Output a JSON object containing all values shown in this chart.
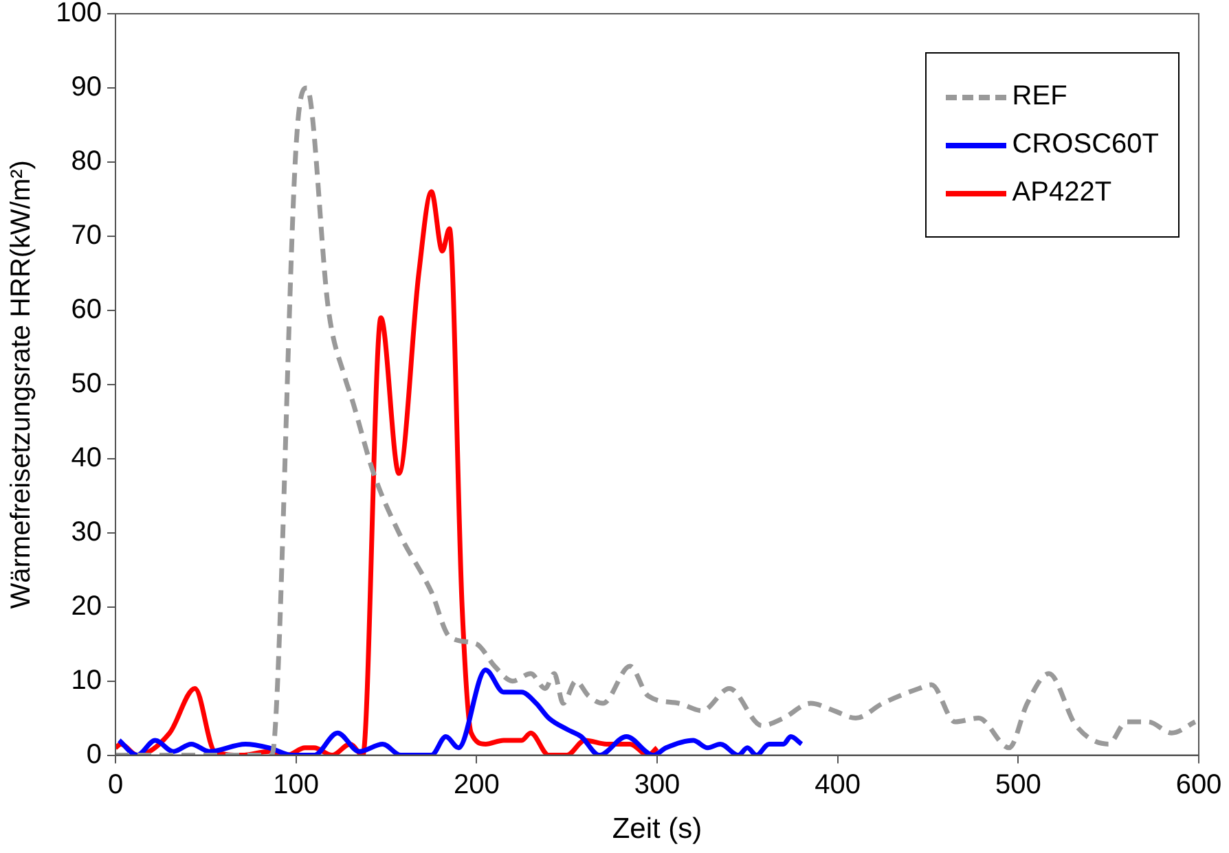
{
  "chart_data": {
    "type": "line",
    "xlabel": "Zeit (s)",
    "ylabel": "Wärmefreisetzungsrate HRR(kW/m²)",
    "xlim": [
      0,
      600
    ],
    "xticks": [
      0,
      100,
      200,
      300,
      400,
      500,
      600
    ],
    "ylim": [
      0,
      100
    ],
    "yticks": [
      0,
      10,
      20,
      30,
      40,
      50,
      60,
      70,
      80,
      90,
      100
    ],
    "grid": false,
    "legend": "top right",
    "marker": "none",
    "series": [
      {
        "name": "REF",
        "color": "#999999",
        "line_style": "dashed",
        "x": [
          0,
          86,
          88,
          100,
          106,
          118,
          127,
          131,
          143,
          157,
          175,
          185,
          200,
          210,
          220,
          230,
          238,
          243,
          248,
          255,
          262,
          270,
          285,
          295,
          312,
          325,
          340,
          358,
          370,
          385,
          398,
          410,
          425,
          445,
          452,
          465,
          478,
          495,
          505,
          517,
          532,
          550,
          560,
          572,
          585,
          598
        ],
        "values": [
          0,
          0,
          2,
          82,
          90,
          60,
          51,
          48,
          38,
          30,
          22,
          16,
          15,
          12,
          10,
          11,
          9,
          11,
          7,
          10,
          8,
          7,
          12,
          8,
          7,
          6,
          9,
          4,
          5,
          7,
          6,
          5,
          7,
          9,
          9.5,
          4.5,
          5,
          1,
          7,
          11,
          4,
          1.5,
          4.5,
          4.5,
          3,
          4.5
        ]
      },
      {
        "name": "CROSC60T",
        "color": "#0000ff",
        "line_style": "solid",
        "x": [
          2,
          12,
          22,
          32,
          42,
          52,
          72,
          85,
          98,
          110,
          123,
          135,
          148,
          158,
          175,
          183,
          190,
          205,
          215,
          225,
          233,
          240,
          250,
          258,
          268,
          283,
          298,
          305,
          320,
          328,
          335,
          345,
          350,
          355,
          362,
          370,
          374,
          380
        ],
        "values": [
          2,
          0,
          2,
          0.5,
          1.5,
          0.5,
          1.5,
          1,
          0,
          0,
          3,
          0.5,
          1.5,
          0,
          0,
          2.5,
          1,
          11.5,
          8.5,
          8.5,
          7,
          5,
          3.5,
          2.5,
          0,
          2.5,
          0,
          1,
          2,
          1,
          1.5,
          0,
          1,
          0,
          1.5,
          1.5,
          2.5,
          1.5
        ]
      },
      {
        "name": "AP422T",
        "color": "#ff0000",
        "line_style": "solid",
        "x": [
          0,
          3,
          12,
          30,
          44,
          55,
          70,
          85,
          95,
          105,
          110,
          120,
          130,
          137,
          147,
          157,
          168,
          175,
          181,
          185,
          192,
          197,
          205,
          215,
          225,
          230,
          240,
          250,
          260,
          272,
          285,
          295,
          300
        ],
        "values": [
          1,
          1.5,
          0,
          3,
          9,
          0.5,
          0,
          0.5,
          0,
          1,
          1,
          0,
          1.5,
          0,
          59,
          38,
          65,
          76,
          68,
          71,
          20,
          3,
          1.5,
          2,
          2,
          3,
          0,
          0,
          2,
          1.5,
          1.5,
          0,
          1
        ]
      }
    ]
  }
}
